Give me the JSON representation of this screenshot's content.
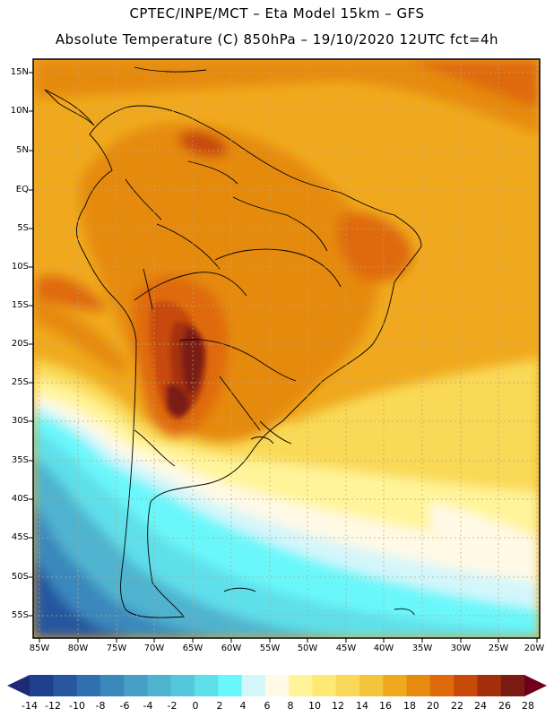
{
  "header": {
    "line1": "CPTEC/INPE/MCT –  Eta Model 15km – GFS",
    "line2": "Absolute Temperature (C) 850hPa – 19/10/2020 12UTC fct=4h"
  },
  "map": {
    "region": "South America",
    "lat_labels": [
      "15N",
      "10N",
      "5N",
      "EQ",
      "5S",
      "10S",
      "15S",
      "20S",
      "25S",
      "30S",
      "35S",
      "40S",
      "45S",
      "50S",
      "55S"
    ],
    "lon_labels": [
      "85W",
      "80W",
      "75W",
      "70W",
      "65W",
      "60W",
      "55W",
      "50W",
      "45W",
      "40W",
      "35W",
      "30W",
      "25W",
      "20W"
    ]
  },
  "colorbar": {
    "labels": [
      "-14",
      "-12",
      "-10",
      "-8",
      "-6",
      "-4",
      "-2",
      "0",
      "2",
      "4",
      "6",
      "8",
      "10",
      "12",
      "14",
      "16",
      "18",
      "20",
      "22",
      "24",
      "26",
      "28"
    ],
    "colors": [
      "#1f3f8f",
      "#28569f",
      "#3170b0",
      "#3b88bd",
      "#459fc6",
      "#4fb3cf",
      "#56c6dc",
      "#5edfea",
      "#6af7fb",
      "#d3f6fb",
      "#fff9e6",
      "#fff49a",
      "#fde973",
      "#f9d957",
      "#f3c43c",
      "#f0a91e",
      "#e68a10",
      "#df6a0b",
      "#c84a08",
      "#a4300b",
      "#7b1c14"
    ],
    "under_color": "#1f2a74",
    "over_color": "#70001a"
  }
}
